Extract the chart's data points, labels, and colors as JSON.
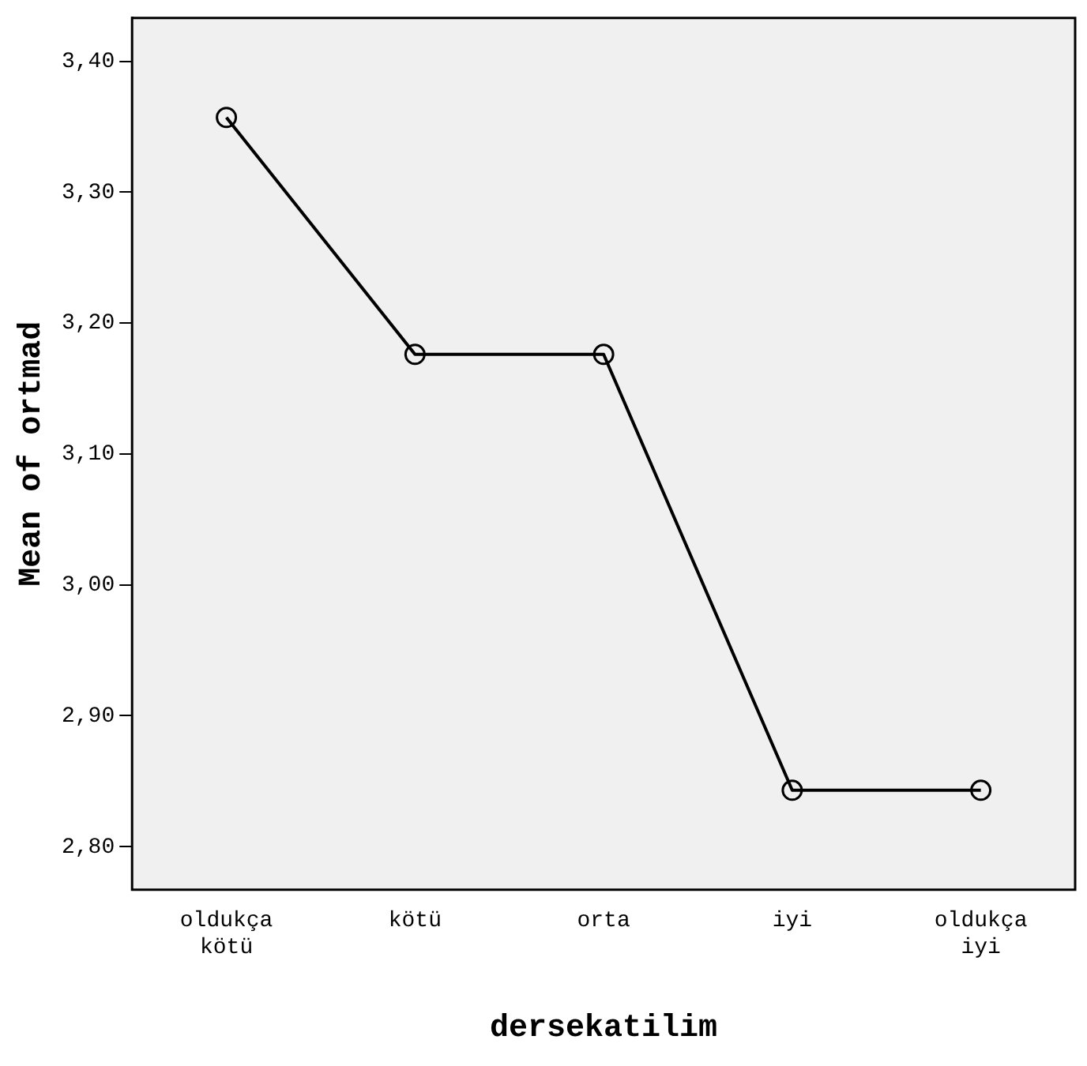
{
  "chart_data": {
    "type": "line",
    "xlabel": "dersekatilim",
    "ylabel": "Mean of ortmad",
    "categories": [
      "oldukça kötü",
      "kötü",
      "orta",
      "iyi",
      "oldukça iyi"
    ],
    "series": [
      {
        "color": "#000000",
        "values": [
          3.357,
          3.176,
          3.176,
          2.843,
          2.843
        ]
      }
    ],
    "ylim": [
      2.767,
      3.433
    ],
    "yticks": [
      {
        "value": 2.8,
        "label": "2,80"
      },
      {
        "value": 2.9,
        "label": "2,90"
      },
      {
        "value": 3.0,
        "label": "3,00"
      },
      {
        "value": 3.1,
        "label": "3,10"
      },
      {
        "value": 3.2,
        "label": "3,20"
      },
      {
        "value": 3.3,
        "label": "3,30"
      },
      {
        "value": 3.4,
        "label": "3,40"
      }
    ],
    "grid": false,
    "legend": false,
    "marker": "circle",
    "line_style": "solid"
  }
}
